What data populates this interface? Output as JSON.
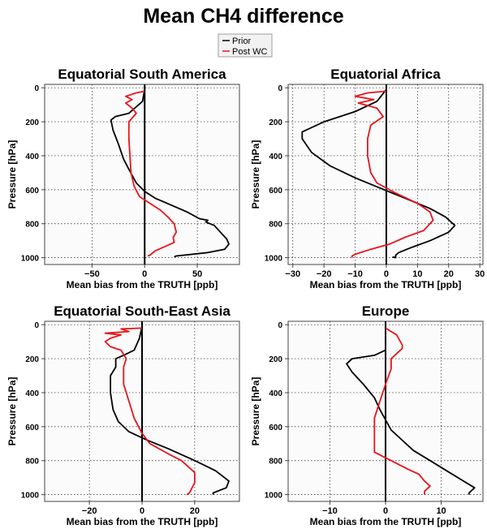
{
  "figure": {
    "title": "Mean CH4 difference",
    "legend": {
      "placement": "top-center",
      "entries": [
        {
          "label": "Prior",
          "color": "#000000"
        },
        {
          "label": "Post WC",
          "color": "#e8141b"
        }
      ]
    }
  },
  "chart_data": [
    {
      "type": "line",
      "title": "Equatorial South America",
      "xlabel": "Mean bias from the TRUTH [ppb]",
      "ylabel": "Pressure [hPa]",
      "xlim": [
        -95,
        90
      ],
      "ylim": [
        1040,
        -20
      ],
      "y_reversed": true,
      "xticks": [
        -50,
        0,
        50
      ],
      "yticks": [
        0,
        200,
        400,
        600,
        800,
        1000
      ],
      "grid": true,
      "zero_line": true,
      "series": [
        {
          "name": "Prior",
          "color": "#000000",
          "points": [
            [
              0,
              10
            ],
            [
              -2,
              80
            ],
            [
              -15,
              150
            ],
            [
              -28,
              170
            ],
            [
              -32,
              190
            ],
            [
              -30,
              250
            ],
            [
              -25,
              330
            ],
            [
              -20,
              420
            ],
            [
              -15,
              480
            ],
            [
              -8,
              560
            ],
            [
              0,
              610
            ],
            [
              10,
              650
            ],
            [
              25,
              690
            ],
            [
              40,
              730
            ],
            [
              52,
              770
            ],
            [
              60,
              780
            ],
            [
              58,
              790
            ],
            [
              66,
              810
            ],
            [
              72,
              850
            ],
            [
              78,
              890
            ],
            [
              80,
              920
            ],
            [
              76,
              950
            ],
            [
              60,
              970
            ],
            [
              30,
              990
            ],
            [
              28,
              995
            ]
          ]
        },
        {
          "name": "Post WC",
          "color": "#e8141b",
          "points": [
            [
              0,
              20
            ],
            [
              -8,
              30
            ],
            [
              -18,
              50
            ],
            [
              -12,
              70
            ],
            [
              -18,
              90
            ],
            [
              -12,
              120
            ],
            [
              -8,
              150
            ],
            [
              -15,
              200
            ],
            [
              -15,
              300
            ],
            [
              -14,
              400
            ],
            [
              -13,
              500
            ],
            [
              -10,
              580
            ],
            [
              -5,
              640
            ],
            [
              5,
              680
            ],
            [
              15,
              720
            ],
            [
              22,
              760
            ],
            [
              28,
              800
            ],
            [
              30,
              850
            ],
            [
              27,
              880
            ],
            [
              28,
              910
            ],
            [
              10,
              960
            ],
            [
              5,
              985
            ],
            [
              3,
              990
            ]
          ]
        }
      ]
    },
    {
      "type": "line",
      "title": "Equatorial Africa",
      "xlabel": "Mean bias from the TRUTH [ppb]",
      "ylabel": "Pressure [hPa]",
      "xlim": [
        -31.5,
        31
      ],
      "ylim": [
        1040,
        -20
      ],
      "y_reversed": true,
      "xticks": [
        -30,
        -20,
        -10,
        0,
        10,
        20,
        30
      ],
      "yticks": [
        0,
        200,
        400,
        600,
        800,
        1000
      ],
      "grid": true,
      "zero_line": true,
      "series": [
        {
          "name": "Prior",
          "color": "#000000",
          "points": [
            [
              0,
              10
            ],
            [
              -3,
              80
            ],
            [
              -10,
              140
            ],
            [
              -20,
              200
            ],
            [
              -27,
              260
            ],
            [
              -27,
              300
            ],
            [
              -24,
              380
            ],
            [
              -18,
              460
            ],
            [
              -10,
              530
            ],
            [
              -2,
              590
            ],
            [
              6,
              650
            ],
            [
              14,
              710
            ],
            [
              19,
              760
            ],
            [
              22,
              810
            ],
            [
              20,
              850
            ],
            [
              14,
              900
            ],
            [
              8,
              940
            ],
            [
              4,
              970
            ],
            [
              3,
              985
            ],
            [
              3,
              1000
            ],
            [
              2,
              995
            ]
          ]
        },
        {
          "name": "Post WC",
          "color": "#e8141b",
          "points": [
            [
              0,
              20
            ],
            [
              -6,
              30
            ],
            [
              -10,
              50
            ],
            [
              -4,
              70
            ],
            [
              -9,
              90
            ],
            [
              -3,
              120
            ],
            [
              -1,
              170
            ],
            [
              -5,
              220
            ],
            [
              -6,
              300
            ],
            [
              -6,
              400
            ],
            [
              -5,
              500
            ],
            [
              -3,
              560
            ],
            [
              3,
              620
            ],
            [
              10,
              680
            ],
            [
              14,
              730
            ],
            [
              15,
              780
            ],
            [
              12,
              840
            ],
            [
              6,
              880
            ],
            [
              1,
              920
            ],
            [
              -5,
              950
            ],
            [
              -10,
              980
            ],
            [
              -11,
              990
            ],
            [
              -11,
              1000
            ]
          ]
        }
      ]
    },
    {
      "type": "line",
      "title": "Equatorial South-East Asia",
      "xlabel": "Mean bias from the TRUTH [ppb]",
      "ylabel": "Pressure [hPa]",
      "xlim": [
        -37,
        37
      ],
      "ylim": [
        1040,
        -20
      ],
      "y_reversed": true,
      "xticks": [
        -20,
        0,
        20
      ],
      "yticks": [
        0,
        200,
        400,
        600,
        800,
        1000
      ],
      "grid": true,
      "zero_line": true,
      "series": [
        {
          "name": "Prior",
          "color": "#000000",
          "points": [
            [
              0,
              10
            ],
            [
              -1,
              80
            ],
            [
              -3,
              150
            ],
            [
              -7,
              180
            ],
            [
              -10,
              200
            ],
            [
              -10,
              250
            ],
            [
              -12,
              300
            ],
            [
              -12,
              400
            ],
            [
              -11,
              500
            ],
            [
              -9,
              570
            ],
            [
              -5,
              630
            ],
            [
              2,
              680
            ],
            [
              10,
              730
            ],
            [
              20,
              800
            ],
            [
              28,
              860
            ],
            [
              33,
              920
            ],
            [
              32,
              960
            ],
            [
              27,
              990
            ],
            [
              27,
              1000
            ]
          ]
        },
        {
          "name": "Post WC",
          "color": "#e8141b",
          "points": [
            [
              0,
              20
            ],
            [
              -8,
              25
            ],
            [
              -5,
              40
            ],
            [
              -14,
              50
            ],
            [
              -8,
              60
            ],
            [
              -12,
              80
            ],
            [
              -14,
              100
            ],
            [
              -12,
              130
            ],
            [
              -8,
              150
            ],
            [
              -6,
              200
            ],
            [
              -7,
              250
            ],
            [
              -7,
              350
            ],
            [
              -5,
              450
            ],
            [
              -3,
              550
            ],
            [
              0,
              640
            ],
            [
              3,
              700
            ],
            [
              10,
              760
            ],
            [
              15,
              800
            ],
            [
              20,
              870
            ],
            [
              20,
              930
            ],
            [
              19,
              960
            ],
            [
              18,
              990
            ],
            [
              17,
              1000
            ]
          ]
        }
      ]
    },
    {
      "type": "line",
      "title": "Europe",
      "xlabel": "Mean bias from the TRUTH [ppb]",
      "ylabel": "Pressure [hPa]",
      "xlim": [
        -17.5,
        17.5
      ],
      "ylim": [
        1040,
        -20
      ],
      "y_reversed": true,
      "xticks": [
        -10,
        0,
        10
      ],
      "yticks": [
        0,
        200,
        400,
        600,
        800,
        1000
      ],
      "grid": true,
      "zero_line": true,
      "series": [
        {
          "name": "Prior",
          "color": "#000000",
          "points": [
            [
              0,
              10
            ],
            [
              0,
              80
            ],
            [
              0,
              150
            ],
            [
              -2,
              180
            ],
            [
              -6,
              200
            ],
            [
              -7,
              230
            ],
            [
              -6,
              280
            ],
            [
              -4,
              350
            ],
            [
              -2,
              430
            ],
            [
              -1,
              500
            ],
            [
              0,
              560
            ],
            [
              1,
              620
            ],
            [
              3,
              680
            ],
            [
              5,
              740
            ],
            [
              8,
              800
            ],
            [
              11,
              860
            ],
            [
              14,
              920
            ],
            [
              16,
              960
            ],
            [
              15,
              990
            ],
            [
              15,
              1000
            ]
          ]
        },
        {
          "name": "Post WC",
          "color": "#e8141b",
          "points": [
            [
              0,
              20
            ],
            [
              2,
              60
            ],
            [
              3,
              120
            ],
            [
              3,
              140
            ],
            [
              2,
              170
            ],
            [
              1,
              200
            ],
            [
              1,
              260
            ],
            [
              0,
              350
            ],
            [
              -1,
              450
            ],
            [
              -2,
              550
            ],
            [
              -2,
              650
            ],
            [
              -2,
              750
            ],
            [
              1,
              800
            ],
            [
              4,
              850
            ],
            [
              6,
              880
            ],
            [
              7,
              920
            ],
            [
              8,
              950
            ],
            [
              7,
              980
            ],
            [
              7,
              1000
            ]
          ]
        }
      ]
    }
  ]
}
